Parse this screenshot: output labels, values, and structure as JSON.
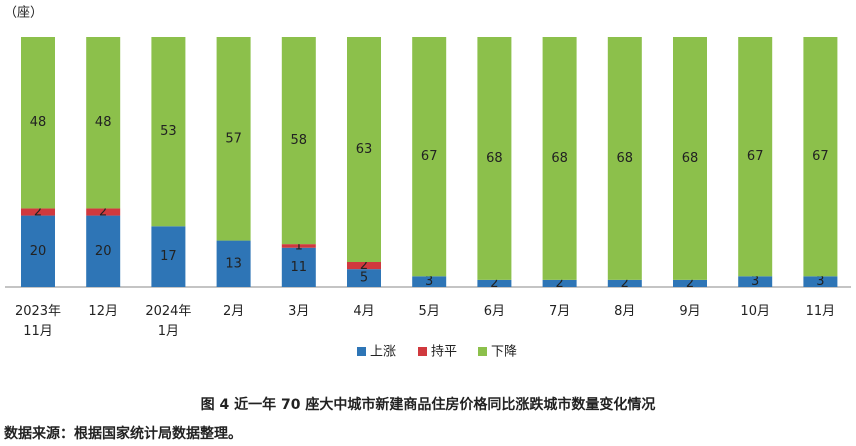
{
  "chart_data": {
    "type": "stacked_bar",
    "title": "图 4  近一年 70 座大中城市新建商品住房价格同比涨跌城市数量变化情况",
    "source": "数据来源：根据国家统计局数据整理。",
    "y_label": "（座）",
    "categories": [
      "2023年\n11月",
      "12月",
      "2024年\n1月",
      "2月",
      "3月",
      "4月",
      "5月",
      "6月",
      "7月",
      "8月",
      "9月",
      "10月",
      "11月"
    ],
    "series": [
      {
        "name": "上涨",
        "color": "#2e75b6",
        "values": [
          20,
          20,
          17,
          13,
          11,
          5,
          3,
          2,
          2,
          2,
          2,
          3,
          3
        ]
      },
      {
        "name": "持平",
        "color": "#d0393e",
        "values": [
          2,
          2,
          0,
          0,
          1,
          2,
          0,
          0,
          0,
          0,
          0,
          0,
          0
        ]
      },
      {
        "name": "下降",
        "color": "#8cc04b",
        "values": [
          48,
          48,
          53,
          57,
          58,
          63,
          67,
          68,
          68,
          68,
          68,
          67,
          67
        ]
      }
    ],
    "ylim": [
      0,
      70
    ],
    "legend": "bottom"
  }
}
